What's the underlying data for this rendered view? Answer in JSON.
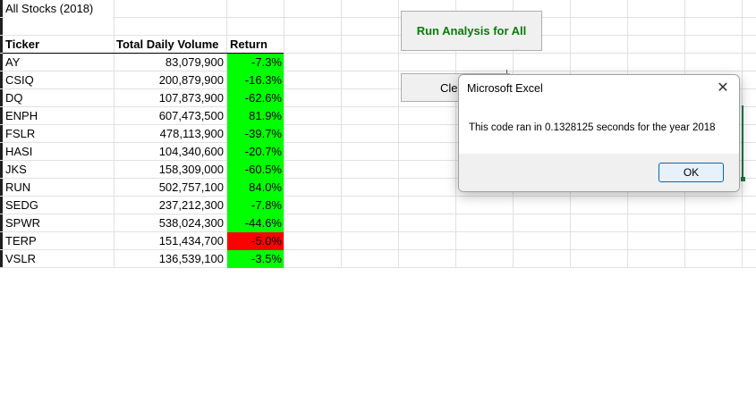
{
  "sheet": {
    "title": "All Stocks (2018)",
    "headers": {
      "ticker": "Ticker",
      "volume": "Total Daily Volume",
      "return": "Return"
    },
    "rows": [
      {
        "ticker": "AY",
        "volume": "83,079,900",
        "return": "-7.3%",
        "status": "positive"
      },
      {
        "ticker": "CSIQ",
        "volume": "200,879,900",
        "return": "-16.3%",
        "status": "positive"
      },
      {
        "ticker": "DQ",
        "volume": "107,873,900",
        "return": "-62.6%",
        "status": "positive"
      },
      {
        "ticker": "ENPH",
        "volume": "607,473,500",
        "return": "81.9%",
        "status": "positive"
      },
      {
        "ticker": "FSLR",
        "volume": "478,113,900",
        "return": "-39.7%",
        "status": "positive"
      },
      {
        "ticker": "HASI",
        "volume": "104,340,600",
        "return": "-20.7%",
        "status": "positive"
      },
      {
        "ticker": "JKS",
        "volume": "158,309,000",
        "return": "-60.5%",
        "status": "positive"
      },
      {
        "ticker": "RUN",
        "volume": "502,757,100",
        "return": "84.0%",
        "status": "positive"
      },
      {
        "ticker": "SEDG",
        "volume": "237,212,300",
        "return": "-7.8%",
        "status": "positive"
      },
      {
        "ticker": "SPWR",
        "volume": "538,024,300",
        "return": "-44.6%",
        "status": "positive"
      },
      {
        "ticker": "TERP",
        "volume": "151,434,700",
        "return": "-5.0%",
        "status": "negative"
      },
      {
        "ticker": "VSLR",
        "volume": "136,539,100",
        "return": "-3.5%",
        "status": "positive"
      }
    ]
  },
  "buttons": {
    "run_all": "Run Analysis for All",
    "clear": "Cle"
  },
  "dialog": {
    "title": "Microsoft Excel",
    "message": "This code ran in 0.1328125 seconds for the year 2018",
    "ok": "OK",
    "close_icon": "close-icon"
  },
  "colors": {
    "positive_fill": "#00ff00",
    "negative_fill": "#ff0000",
    "run_button_text": "#0a7a0a",
    "selection_border": "#217346"
  }
}
